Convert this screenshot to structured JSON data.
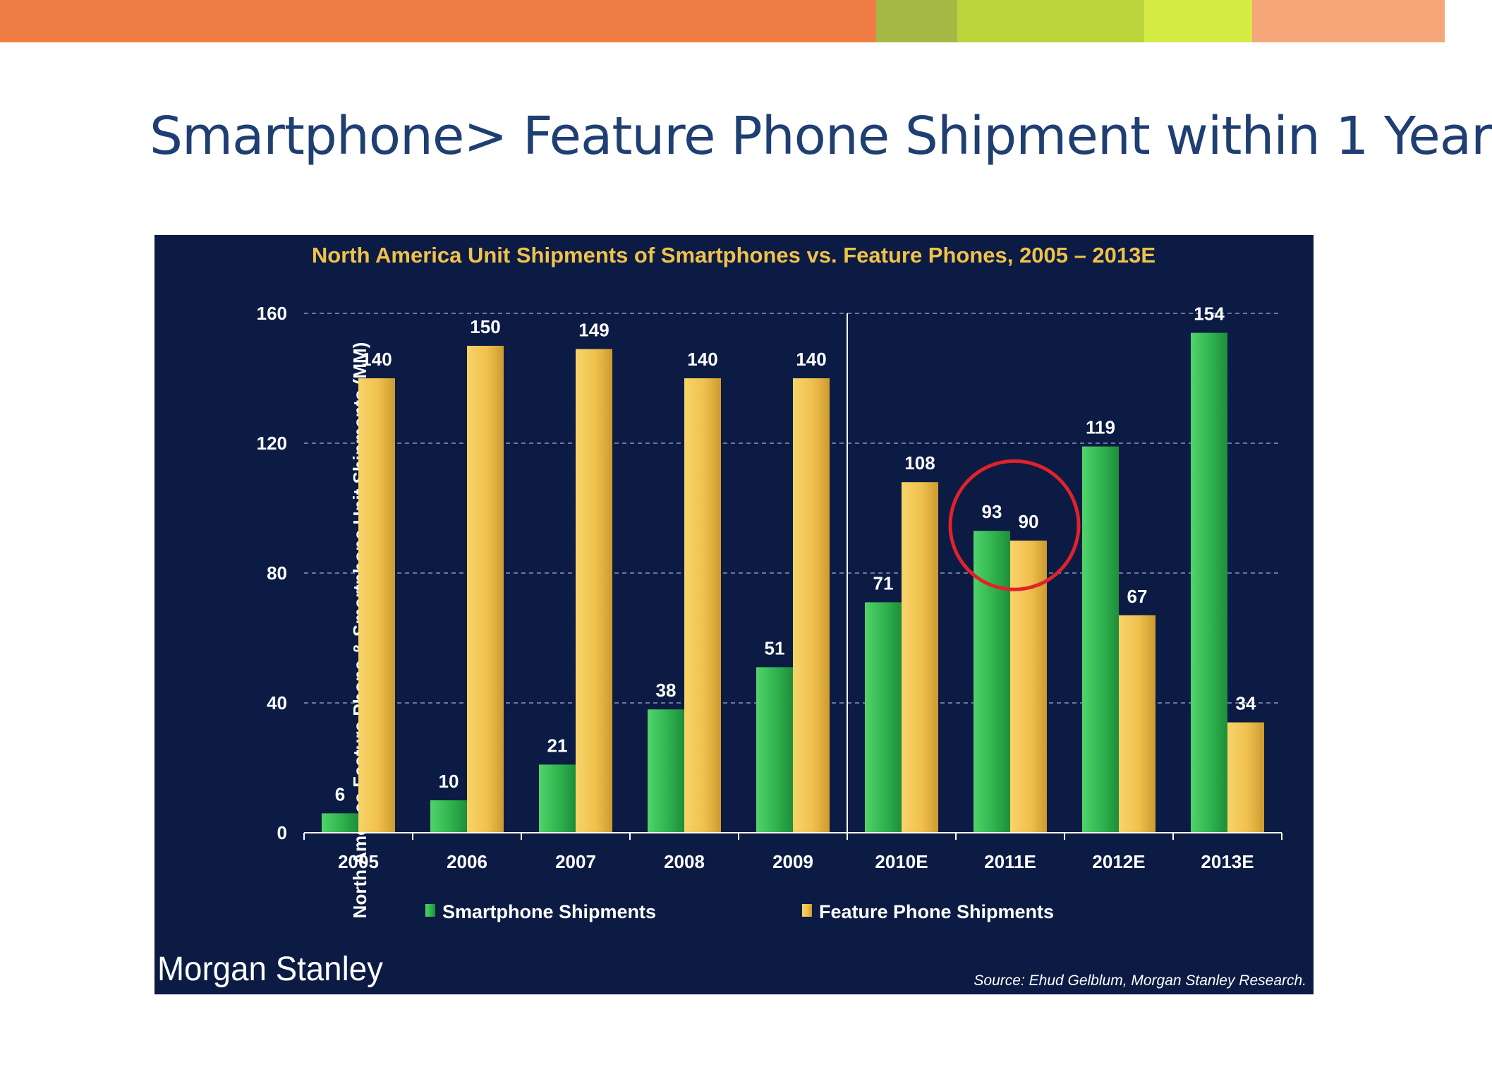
{
  "slide": {
    "title": "Smartphone> Feature Phone Shipment within 1 Year",
    "topbar_colors": [
      "#f07d43",
      "#a6b846",
      "#bcd53c",
      "#d4ec44",
      "#f5a779"
    ]
  },
  "chart_data": {
    "type": "bar",
    "title": "North America Unit Shipments of Smartphones vs. Feature Phones, 2005 – 2013E",
    "xlabel": "",
    "ylabel": "North America Feature Phone & Smartphone Unit Shipments (MM)",
    "categories": [
      "2005",
      "2006",
      "2007",
      "2008",
      "2009",
      "2010E",
      "2011E",
      "2012E",
      "2013E"
    ],
    "series": [
      {
        "name": "Smartphone Shipments",
        "color": "#2fb34f",
        "values": [
          6,
          10,
          21,
          38,
          51,
          71,
          93,
          119,
          154
        ]
      },
      {
        "name": "Feature Phone Shipments",
        "color": "#f0c04e",
        "values": [
          140,
          150,
          149,
          140,
          140,
          108,
          90,
          67,
          34
        ]
      }
    ],
    "ylim": [
      0,
      160
    ],
    "yticks": [
      "0",
      "40",
      "80",
      "120",
      "160"
    ],
    "grid": true,
    "legend": "bottom",
    "highlight_category": "2011E",
    "estimate_divider_after": "2009",
    "background": "#0b1b44",
    "branding": "Morgan Stanley",
    "source": "Source: Ehud Gelblum, Morgan Stanley Research."
  }
}
